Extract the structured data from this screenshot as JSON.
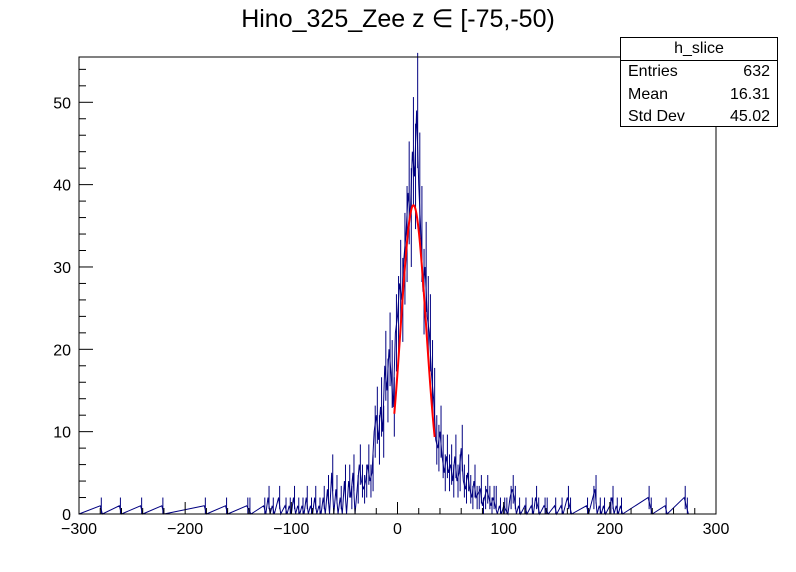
{
  "chart_data": {
    "type": "histogram",
    "title": "Hino_325_Zee z  ∈ [-75,-50)",
    "xlim": [
      -300,
      300
    ],
    "ylim": [
      0,
      55.5
    ],
    "x_ticks": [
      -300,
      -200,
      -100,
      0,
      100,
      200,
      300
    ],
    "y_ticks": [
      0,
      10,
      20,
      30,
      40,
      50
    ],
    "grid": false,
    "bin_width": 2,
    "histogram_color": "#000080",
    "fit_color": "#ff0000",
    "nonzero_bins": [
      {
        "x": -279,
        "y": 1
      },
      {
        "x": -261,
        "y": 1
      },
      {
        "x": -241,
        "y": 1
      },
      {
        "x": -221,
        "y": 1
      },
      {
        "x": -181,
        "y": 1
      },
      {
        "x": -161,
        "y": 1
      },
      {
        "x": -141,
        "y": 1
      },
      {
        "x": -139,
        "y": 1
      },
      {
        "x": -125,
        "y": 1
      },
      {
        "x": -121,
        "y": 2
      },
      {
        "x": -117,
        "y": 1
      },
      {
        "x": -111,
        "y": 2
      },
      {
        "x": -105,
        "y": 1
      },
      {
        "x": -101,
        "y": 1
      },
      {
        "x": -97,
        "y": 2
      },
      {
        "x": -93,
        "y": 1
      },
      {
        "x": -89,
        "y": 1
      },
      {
        "x": -85,
        "y": 2
      },
      {
        "x": -81,
        "y": 1
      },
      {
        "x": -77,
        "y": 2
      },
      {
        "x": -73,
        "y": 1
      },
      {
        "x": -69,
        "y": 2
      },
      {
        "x": -65,
        "y": 3
      },
      {
        "x": -61,
        "y": 5
      },
      {
        "x": -57,
        "y": 3
      },
      {
        "x": -53,
        "y": 2
      },
      {
        "x": -49,
        "y": 4
      },
      {
        "x": -45,
        "y": 4
      },
      {
        "x": -43,
        "y": 2
      },
      {
        "x": -41,
        "y": 5
      },
      {
        "x": -37,
        "y": 3
      },
      {
        "x": -35,
        "y": 6
      },
      {
        "x": -33,
        "y": 4
      },
      {
        "x": -31,
        "y": 3
      },
      {
        "x": -29,
        "y": 4
      },
      {
        "x": -27,
        "y": 6
      },
      {
        "x": -25,
        "y": 4
      },
      {
        "x": -23,
        "y": 5
      },
      {
        "x": -21,
        "y": 10
      },
      {
        "x": -19,
        "y": 12
      },
      {
        "x": -17,
        "y": 9
      },
      {
        "x": -15,
        "y": 13
      },
      {
        "x": -13,
        "y": 10
      },
      {
        "x": -11,
        "y": 18
      },
      {
        "x": -9,
        "y": 15
      },
      {
        "x": -7,
        "y": 20
      },
      {
        "x": -5,
        "y": 17
      },
      {
        "x": -3,
        "y": 13
      },
      {
        "x": -1,
        "y": 22
      },
      {
        "x": 1,
        "y": 24
      },
      {
        "x": 3,
        "y": 28
      },
      {
        "x": 5,
        "y": 26
      },
      {
        "x": 7,
        "y": 31
      },
      {
        "x": 9,
        "y": 34
      },
      {
        "x": 11,
        "y": 39
      },
      {
        "x": 13,
        "y": 36
      },
      {
        "x": 15,
        "y": 44
      },
      {
        "x": 17,
        "y": 41
      },
      {
        "x": 19,
        "y": 49
      },
      {
        "x": 21,
        "y": 40
      },
      {
        "x": 23,
        "y": 34
      },
      {
        "x": 25,
        "y": 27
      },
      {
        "x": 27,
        "y": 30
      },
      {
        "x": 29,
        "y": 24
      },
      {
        "x": 31,
        "y": 22
      },
      {
        "x": 33,
        "y": 17
      },
      {
        "x": 35,
        "y": 14
      },
      {
        "x": 37,
        "y": 9
      },
      {
        "x": 39,
        "y": 8
      },
      {
        "x": 41,
        "y": 10
      },
      {
        "x": 43,
        "y": 7
      },
      {
        "x": 45,
        "y": 5
      },
      {
        "x": 47,
        "y": 7
      },
      {
        "x": 49,
        "y": 5
      },
      {
        "x": 51,
        "y": 6
      },
      {
        "x": 53,
        "y": 4
      },
      {
        "x": 55,
        "y": 7
      },
      {
        "x": 57,
        "y": 4
      },
      {
        "x": 59,
        "y": 5
      },
      {
        "x": 61,
        "y": 8
      },
      {
        "x": 63,
        "y": 4
      },
      {
        "x": 65,
        "y": 3
      },
      {
        "x": 67,
        "y": 5
      },
      {
        "x": 69,
        "y": 3
      },
      {
        "x": 71,
        "y": 2
      },
      {
        "x": 73,
        "y": 4
      },
      {
        "x": 75,
        "y": 2
      },
      {
        "x": 77,
        "y": 2
      },
      {
        "x": 79,
        "y": 3
      },
      {
        "x": 81,
        "y": 1
      },
      {
        "x": 83,
        "y": 2
      },
      {
        "x": 85,
        "y": 3
      },
      {
        "x": 87,
        "y": 2
      },
      {
        "x": 89,
        "y": 1
      },
      {
        "x": 91,
        "y": 2
      },
      {
        "x": 93,
        "y": 2
      },
      {
        "x": 97,
        "y": 1
      },
      {
        "x": 101,
        "y": 1
      },
      {
        "x": 103,
        "y": 1
      },
      {
        "x": 107,
        "y": 2
      },
      {
        "x": 109,
        "y": 3
      },
      {
        "x": 111,
        "y": 2
      },
      {
        "x": 115,
        "y": 1
      },
      {
        "x": 121,
        "y": 1
      },
      {
        "x": 127,
        "y": 1
      },
      {
        "x": 131,
        "y": 2
      },
      {
        "x": 133,
        "y": 1
      },
      {
        "x": 139,
        "y": 1
      },
      {
        "x": 141,
        "y": 1
      },
      {
        "x": 149,
        "y": 1
      },
      {
        "x": 155,
        "y": 1
      },
      {
        "x": 161,
        "y": 2
      },
      {
        "x": 163,
        "y": 1
      },
      {
        "x": 179,
        "y": 1
      },
      {
        "x": 185,
        "y": 2
      },
      {
        "x": 187,
        "y": 3
      },
      {
        "x": 191,
        "y": 1
      },
      {
        "x": 195,
        "y": 1
      },
      {
        "x": 201,
        "y": 1
      },
      {
        "x": 203,
        "y": 2
      },
      {
        "x": 207,
        "y": 1
      },
      {
        "x": 211,
        "y": 1
      },
      {
        "x": 237,
        "y": 2
      },
      {
        "x": 239,
        "y": 1
      },
      {
        "x": 253,
        "y": 1
      },
      {
        "x": 271,
        "y": 2
      },
      {
        "x": 273,
        "y": 1
      }
    ],
    "fit": {
      "function": "gaus",
      "mean": 15,
      "sigma": 12,
      "amplitude": 37.5,
      "range": [
        -3,
        35
      ]
    },
    "stats_box": {
      "title": "h_slice",
      "rows": [
        {
          "label": "Entries",
          "value": "632"
        },
        {
          "label": "Mean",
          "value": "16.31"
        },
        {
          "label": "Std Dev",
          "value": "45.02"
        }
      ]
    }
  }
}
